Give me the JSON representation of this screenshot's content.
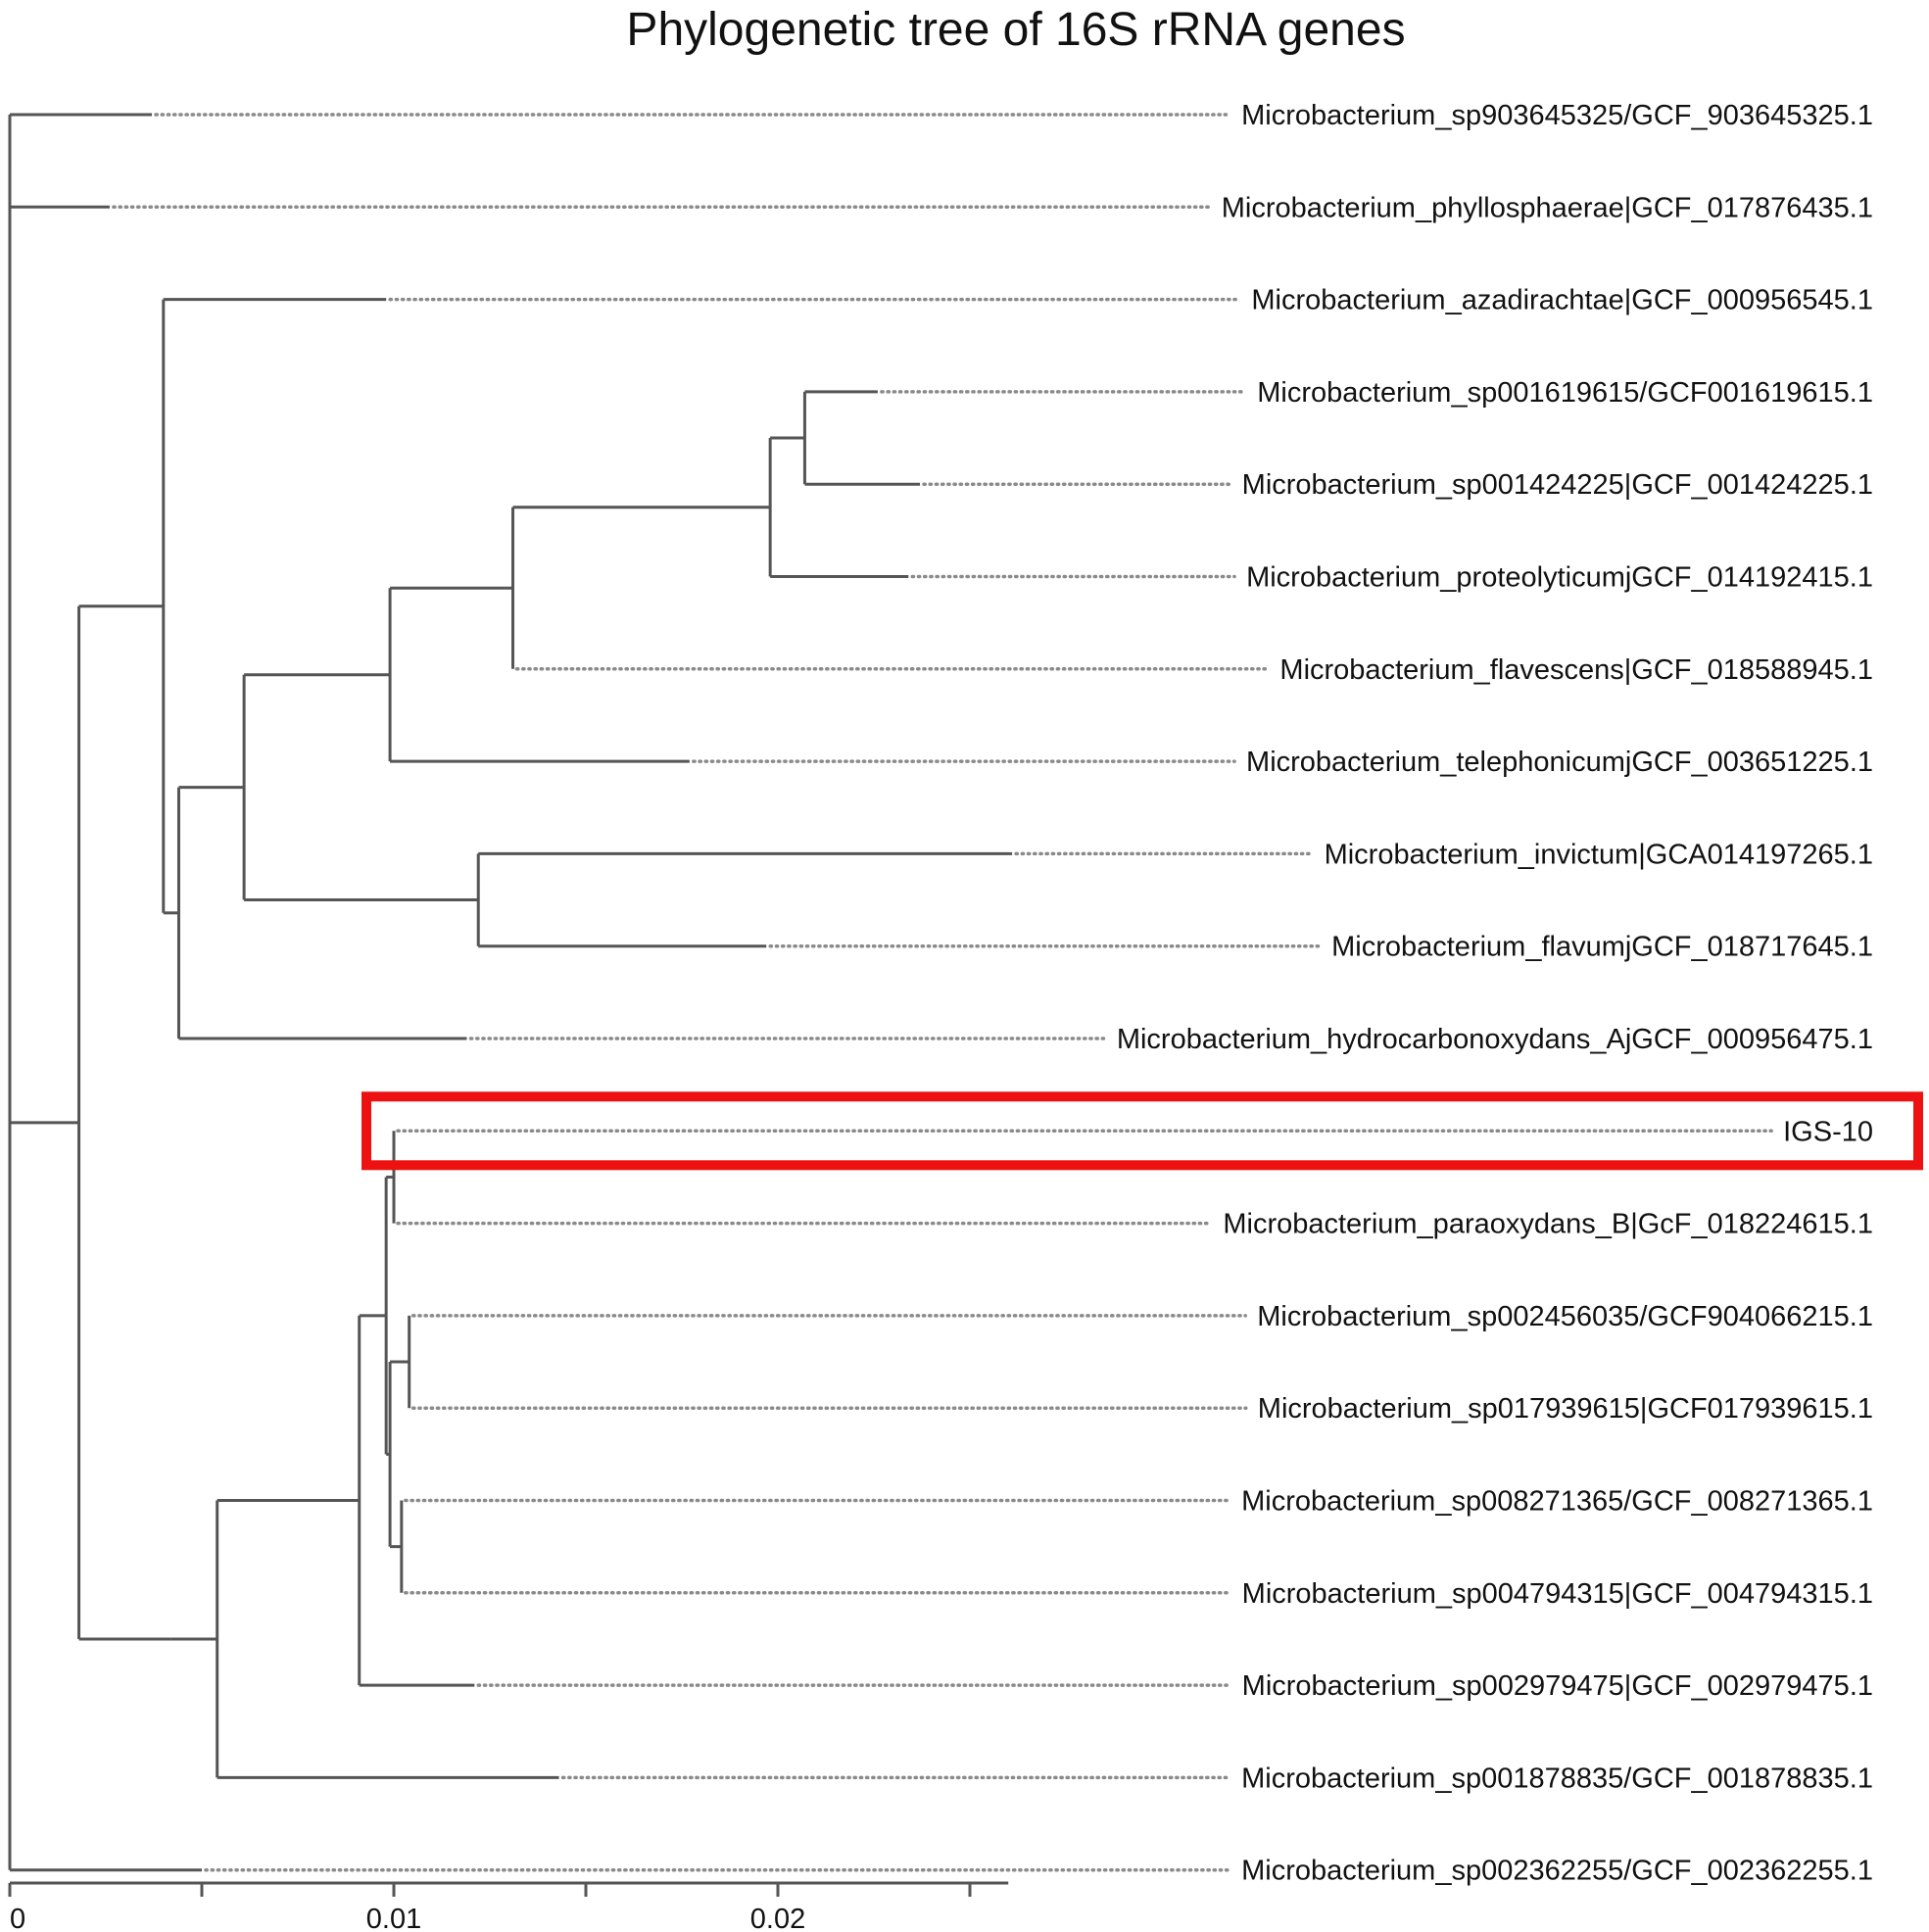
{
  "title": "Phylogenetic tree of 16S rRNA genes",
  "highlight_color": "#ee1111",
  "highlighted_leaf": "IGS-10",
  "leaves": [
    {
      "id": "L0",
      "label": "Microbacterium_sp903645325/GCF_903645325.1"
    },
    {
      "id": "L1",
      "label": "Microbacterium_phyllosphaerae|GCF_017876435.1"
    },
    {
      "id": "L2",
      "label": "Microbacterium_azadirachtae|GCF_000956545.1"
    },
    {
      "id": "L3",
      "label": "Microbacterium_sp001619615/GCF001619615.1"
    },
    {
      "id": "L4",
      "label": "Microbacterium_sp001424225|GCF_001424225.1"
    },
    {
      "id": "L5",
      "label": "Microbacterium_proteolyticumjGCF_014192415.1"
    },
    {
      "id": "L6",
      "label": "Microbacterium_flavescens|GCF_018588945.1"
    },
    {
      "id": "L7",
      "label": "Microbacterium_telephonicumjGCF_003651225.1"
    },
    {
      "id": "L8",
      "label": "Microbacterium_invictum|GCA014197265.1"
    },
    {
      "id": "L9",
      "label": "Microbacterium_flavumjGCF_018717645.1"
    },
    {
      "id": "L10",
      "label": "Microbacterium_hydrocarbonoxydans_AjGCF_000956475.1"
    },
    {
      "id": "L11",
      "label": "IGS-10"
    },
    {
      "id": "L12",
      "label": "Microbacterium_paraoxydans_B|GcF_018224615.1"
    },
    {
      "id": "L13",
      "label": "Microbacterium_sp002456035/GCF904066215.1"
    },
    {
      "id": "L14",
      "label": "Microbacterium_sp017939615|GCF017939615.1"
    },
    {
      "id": "L15",
      "label": "Microbacterium_sp008271365/GCF_008271365.1"
    },
    {
      "id": "L16",
      "label": "Microbacterium_sp004794315|GCF_004794315.1"
    },
    {
      "id": "L17",
      "label": "Microbacterium_sp002979475|GCF_002979475.1"
    },
    {
      "id": "L18",
      "label": "Microbacterium_sp001878835/GCF_001878835.1"
    },
    {
      "id": "L19",
      "label": "Microbacterium_sp002362255/GCF_002362255.1"
    }
  ],
  "scale_axis": {
    "min": 0,
    "max": 0.026,
    "ticks": [
      0,
      0.005,
      0.01,
      0.015,
      0.02,
      0.025
    ],
    "labels": [
      {
        "value": 0,
        "text": "0"
      },
      {
        "value": 0.01,
        "text": "0.01"
      },
      {
        "value": 0.02,
        "text": "0.02"
      }
    ]
  },
  "tree": {
    "name": "root",
    "dist": 0,
    "children": [
      {
        "name": "n_top",
        "dist": 0,
        "children": [
          {
            "leaf": "L0",
            "dist": 0.0037
          },
          {
            "leaf": "L1",
            "dist": 0.0026
          }
        ]
      },
      {
        "name": "n_main",
        "dist": 0.0018,
        "children": [
          {
            "name": "n_a",
            "dist": 0.0022,
            "children": [
              {
                "leaf": "L2",
                "dist": 0.0058
              },
              {
                "name": "n_b",
                "dist": 0.0004,
                "children": [
                  {
                    "name": "n_c",
                    "dist": 0.0017,
                    "children": [
                      {
                        "name": "n_d",
                        "dist": 0.0038,
                        "children": [
                          {
                            "name": "n_e",
                            "dist": 0.0032,
                            "children": [
                              {
                                "name": "n_f",
                                "dist": 0.0067,
                                "children": [
                                  {
                                    "name": "n_g",
                                    "dist": 0.0009,
                                    "children": [
                                      {
                                        "leaf": "L3",
                                        "dist": 0.0019
                                      },
                                      {
                                        "leaf": "L4",
                                        "dist": 0.003
                                      }
                                    ]
                                  },
                                  {
                                    "leaf": "L5",
                                    "dist": 0.0036
                                  }
                                ]
                              },
                              {
                                "leaf": "L6",
                                "dist": 0
                              }
                            ]
                          },
                          {
                            "leaf": "L7",
                            "dist": 0.0078
                          }
                        ]
                      },
                      {
                        "name": "n_h",
                        "dist": 0.0061,
                        "children": [
                          {
                            "leaf": "L8",
                            "dist": 0.0139
                          },
                          {
                            "leaf": "L9",
                            "dist": 0.0075
                          }
                        ]
                      }
                    ]
                  },
                  {
                    "leaf": "L10",
                    "dist": 0.0075
                  }
                ]
              }
            ]
          },
          {
            "name": "n_i",
            "dist": 0.0024,
            "children": [
              {
                "name": "n_j",
                "dist": 0.0012,
                "children": [
                  {
                    "name": "n_k",
                    "dist": 0.0037,
                    "children": [
                      {
                        "name": "n_l",
                        "dist": 0.0007,
                        "children": [
                          {
                            "name": "n_m",
                            "dist": 0.0002,
                            "children": [
                              {
                                "leaf": "L11",
                                "dist": 0
                              },
                              {
                                "leaf": "L12",
                                "dist": 0
                              }
                            ]
                          },
                          {
                            "name": "n_n",
                            "dist": 0.0001,
                            "children": [
                              {
                                "name": "n_o",
                                "dist": 0.0005,
                                "children": [
                                  {
                                    "leaf": "L13",
                                    "dist": 0
                                  },
                                  {
                                    "leaf": "L14",
                                    "dist": 0
                                  }
                                ]
                              },
                              {
                                "name": "n_p",
                                "dist": 0.0003,
                                "children": [
                                  {
                                    "leaf": "L15",
                                    "dist": 0
                                  },
                                  {
                                    "leaf": "L16",
                                    "dist": 0
                                  }
                                ]
                              }
                            ]
                          }
                        ]
                      },
                      {
                        "leaf": "L17",
                        "dist": 0.003
                      }
                    ]
                  },
                  {
                    "leaf": "L18",
                    "dist": 0.0089
                  }
                ]
              }
            ]
          }
        ]
      },
      {
        "leaf": "L19",
        "dist": 0.005
      }
    ]
  }
}
